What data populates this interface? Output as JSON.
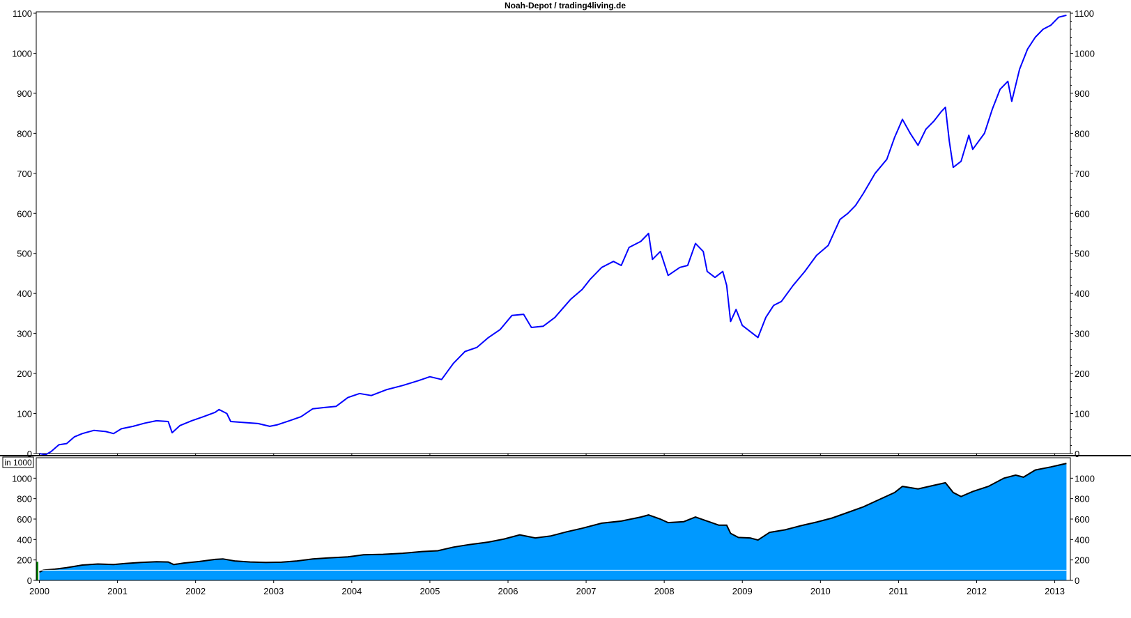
{
  "chart_data": [
    {
      "type": "line",
      "title": "Noah-Depot / trading4living.de",
      "x_tick_labels": [
        "2000",
        "2001",
        "2002",
        "2003",
        "2004",
        "2005",
        "2006",
        "2007",
        "2008",
        "2009",
        "2010",
        "2011",
        "2012",
        "2013"
      ],
      "ylim": [
        0,
        1100
      ],
      "y_ticks": [
        0,
        100,
        200,
        300,
        400,
        500,
        600,
        700,
        800,
        900,
        1000,
        1100
      ],
      "grid": false,
      "series": [
        {
          "color": "#0000ff",
          "points": [
            [
              2000.0,
              0
            ],
            [
              2000.08,
              -3
            ],
            [
              2000.15,
              5
            ],
            [
              2000.25,
              22
            ],
            [
              2000.35,
              25
            ],
            [
              2000.45,
              42
            ],
            [
              2000.55,
              50
            ],
            [
              2000.7,
              58
            ],
            [
              2000.85,
              55
            ],
            [
              2000.95,
              50
            ],
            [
              2001.05,
              62
            ],
            [
              2001.2,
              68
            ],
            [
              2001.35,
              76
            ],
            [
              2001.5,
              82
            ],
            [
              2001.65,
              80
            ],
            [
              2001.7,
              52
            ],
            [
              2001.8,
              70
            ],
            [
              2001.95,
              82
            ],
            [
              2002.1,
              92
            ],
            [
              2002.25,
              103
            ],
            [
              2002.3,
              110
            ],
            [
              2002.4,
              100
            ],
            [
              2002.45,
              80
            ],
            [
              2002.6,
              78
            ],
            [
              2002.8,
              75
            ],
            [
              2002.95,
              68
            ],
            [
              2003.05,
              72
            ],
            [
              2003.2,
              82
            ],
            [
              2003.35,
              92
            ],
            [
              2003.5,
              112
            ],
            [
              2003.65,
              115
            ],
            [
              2003.8,
              118
            ],
            [
              2003.95,
              140
            ],
            [
              2004.1,
              150
            ],
            [
              2004.25,
              145
            ],
            [
              2004.45,
              160
            ],
            [
              2004.65,
              170
            ],
            [
              2004.85,
              182
            ],
            [
              2005.0,
              192
            ],
            [
              2005.15,
              185
            ],
            [
              2005.3,
              225
            ],
            [
              2005.45,
              255
            ],
            [
              2005.6,
              265
            ],
            [
              2005.75,
              290
            ],
            [
              2005.9,
              310
            ],
            [
              2006.05,
              345
            ],
            [
              2006.2,
              348
            ],
            [
              2006.3,
              315
            ],
            [
              2006.45,
              318
            ],
            [
              2006.6,
              340
            ],
            [
              2006.8,
              385
            ],
            [
              2006.95,
              410
            ],
            [
              2007.05,
              435
            ],
            [
              2007.2,
              465
            ],
            [
              2007.35,
              480
            ],
            [
              2007.45,
              470
            ],
            [
              2007.55,
              515
            ],
            [
              2007.7,
              530
            ],
            [
              2007.8,
              550
            ],
            [
              2007.85,
              485
            ],
            [
              2007.95,
              505
            ],
            [
              2008.05,
              445
            ],
            [
              2008.2,
              465
            ],
            [
              2008.3,
              470
            ],
            [
              2008.4,
              525
            ],
            [
              2008.5,
              505
            ],
            [
              2008.55,
              455
            ],
            [
              2008.65,
              440
            ],
            [
              2008.75,
              455
            ],
            [
              2008.8,
              420
            ],
            [
              2008.85,
              330
            ],
            [
              2008.92,
              360
            ],
            [
              2009.0,
              320
            ],
            [
              2009.1,
              305
            ],
            [
              2009.2,
              290
            ],
            [
              2009.3,
              340
            ],
            [
              2009.4,
              370
            ],
            [
              2009.5,
              380
            ],
            [
              2009.65,
              420
            ],
            [
              2009.8,
              455
            ],
            [
              2009.95,
              495
            ],
            [
              2010.1,
              520
            ],
            [
              2010.25,
              585
            ],
            [
              2010.35,
              600
            ],
            [
              2010.45,
              620
            ],
            [
              2010.55,
              650
            ],
            [
              2010.7,
              700
            ],
            [
              2010.85,
              735
            ],
            [
              2010.95,
              790
            ],
            [
              2011.05,
              835
            ],
            [
              2011.15,
              800
            ],
            [
              2011.25,
              770
            ],
            [
              2011.35,
              810
            ],
            [
              2011.45,
              830
            ],
            [
              2011.55,
              855
            ],
            [
              2011.6,
              865
            ],
            [
              2011.65,
              780
            ],
            [
              2011.7,
              715
            ],
            [
              2011.8,
              730
            ],
            [
              2011.9,
              795
            ],
            [
              2011.95,
              760
            ],
            [
              2012.1,
              800
            ],
            [
              2012.2,
              860
            ],
            [
              2012.3,
              910
            ],
            [
              2012.4,
              930
            ],
            [
              2012.45,
              880
            ],
            [
              2012.55,
              960
            ],
            [
              2012.65,
              1010
            ],
            [
              2012.75,
              1040
            ],
            [
              2012.85,
              1060
            ],
            [
              2012.95,
              1070
            ],
            [
              2013.05,
              1090
            ],
            [
              2013.15,
              1095
            ]
          ]
        }
      ]
    },
    {
      "type": "area",
      "unit_label": "in 1000",
      "ylim": [
        0,
        1200
      ],
      "y_ticks": [
        0,
        200,
        400,
        600,
        800,
        1000
      ],
      "baseline": 100,
      "fill_color": "#0099ff",
      "line_color": "#000000",
      "baseline_color": "#ffffff",
      "series": [
        {
          "points": [
            [
              2000.0,
              80
            ],
            [
              2000.05,
              100
            ],
            [
              2000.2,
              110
            ],
            [
              2000.35,
              125
            ],
            [
              2000.55,
              150
            ],
            [
              2000.75,
              160
            ],
            [
              2000.95,
              155
            ],
            [
              2001.1,
              165
            ],
            [
              2001.3,
              175
            ],
            [
              2001.5,
              182
            ],
            [
              2001.65,
              180
            ],
            [
              2001.72,
              155
            ],
            [
              2001.85,
              170
            ],
            [
              2002.05,
              185
            ],
            [
              2002.25,
              205
            ],
            [
              2002.35,
              210
            ],
            [
              2002.5,
              190
            ],
            [
              2002.7,
              180
            ],
            [
              2002.9,
              175
            ],
            [
              2003.1,
              178
            ],
            [
              2003.3,
              190
            ],
            [
              2003.5,
              210
            ],
            [
              2003.7,
              220
            ],
            [
              2003.95,
              230
            ],
            [
              2004.15,
              250
            ],
            [
              2004.4,
              255
            ],
            [
              2004.65,
              265
            ],
            [
              2004.9,
              282
            ],
            [
              2005.1,
              290
            ],
            [
              2005.3,
              325
            ],
            [
              2005.5,
              350
            ],
            [
              2005.75,
              375
            ],
            [
              2005.95,
              405
            ],
            [
              2006.15,
              445
            ],
            [
              2006.35,
              415
            ],
            [
              2006.55,
              435
            ],
            [
              2006.75,
              475
            ],
            [
              2006.95,
              510
            ],
            [
              2007.2,
              560
            ],
            [
              2007.45,
              580
            ],
            [
              2007.7,
              620
            ],
            [
              2007.8,
              640
            ],
            [
              2007.95,
              600
            ],
            [
              2008.05,
              565
            ],
            [
              2008.25,
              575
            ],
            [
              2008.4,
              620
            ],
            [
              2008.55,
              580
            ],
            [
              2008.7,
              540
            ],
            [
              2008.8,
              540
            ],
            [
              2008.85,
              460
            ],
            [
              2008.95,
              420
            ],
            [
              2009.1,
              415
            ],
            [
              2009.2,
              395
            ],
            [
              2009.35,
              470
            ],
            [
              2009.55,
              495
            ],
            [
              2009.75,
              535
            ],
            [
              2009.95,
              570
            ],
            [
              2010.15,
              610
            ],
            [
              2010.35,
              665
            ],
            [
              2010.55,
              720
            ],
            [
              2010.75,
              790
            ],
            [
              2010.95,
              860
            ],
            [
              2011.05,
              920
            ],
            [
              2011.25,
              895
            ],
            [
              2011.45,
              930
            ],
            [
              2011.6,
              955
            ],
            [
              2011.7,
              860
            ],
            [
              2011.8,
              820
            ],
            [
              2011.95,
              870
            ],
            [
              2012.15,
              920
            ],
            [
              2012.35,
              1000
            ],
            [
              2012.5,
              1030
            ],
            [
              2012.6,
              1010
            ],
            [
              2012.75,
              1080
            ],
            [
              2012.95,
              1110
            ],
            [
              2013.15,
              1145
            ]
          ]
        }
      ]
    }
  ]
}
